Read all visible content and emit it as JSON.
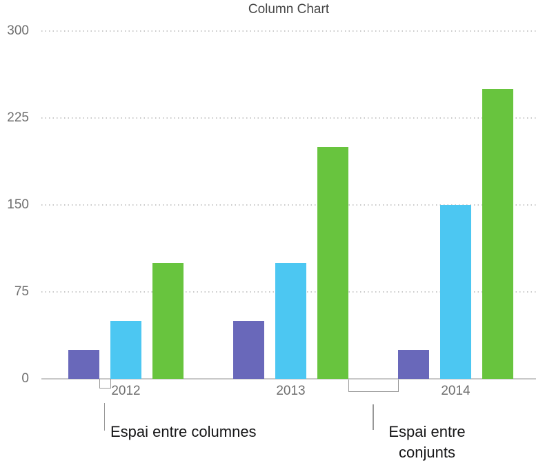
{
  "chart_data": {
    "type": "bar",
    "title": "Column Chart",
    "categories": [
      "2012",
      "2013",
      "2014"
    ],
    "series": [
      {
        "name": "purple",
        "color": "#6968ba",
        "values": [
          25,
          50,
          25
        ]
      },
      {
        "name": "blue",
        "color": "#4cc7f2",
        "values": [
          50,
          100,
          150
        ]
      },
      {
        "name": "green",
        "color": "#68c43e",
        "values": [
          100,
          200,
          250
        ]
      }
    ],
    "y_ticks": [
      0,
      75,
      150,
      225,
      300
    ],
    "ylim": [
      0,
      300
    ],
    "xlabel": "",
    "ylabel": "",
    "grid": "dotted-horizontal",
    "legend": "none"
  },
  "annotations": {
    "column_gap_label": "Espai entre columnes",
    "cluster_gap_lines": [
      "Espai entre",
      "conjunts"
    ]
  }
}
